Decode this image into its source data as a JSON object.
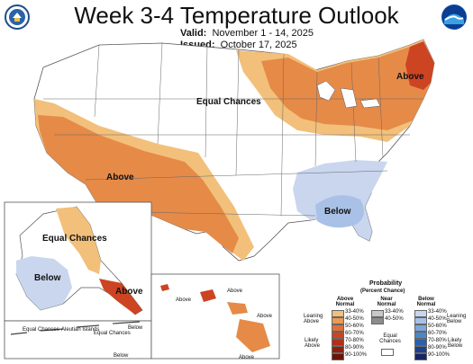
{
  "header": {
    "title": "Week 3-4 Temperature Outlook",
    "valid_label": "Valid:",
    "valid_value": "November 1 - 14, 2025",
    "issued_label": "Issued:",
    "issued_value": "October 17, 2025"
  },
  "logos": {
    "left": "doc-seal-icon",
    "right": "noaa-logo-icon"
  },
  "map_labels": {
    "equal_chances_conus": "Equal Chances",
    "above_northeast": "Above",
    "above_southwest": "Above",
    "below_southeast": "Below",
    "equal_chances_alaska": "Equal Chances",
    "below_alaska": "Below",
    "above_alaska": "Above",
    "equal_chances_aleutian_a": "Equal Chances",
    "aleutian_islands": "Aleutian Islands",
    "equal_chances_aleutian_b": "Equal Chances",
    "below_aleutian_a": "Below",
    "below_aleutian_b": "Below",
    "above_hawaii_1": "Above",
    "above_hawaii_2": "Above",
    "above_hawaii_3": "Above",
    "above_hawaii_4": "Above"
  },
  "legend": {
    "title": "Probability",
    "subtitle": "(Percent Chance)",
    "col_above": "Above Normal",
    "col_near": "Near Normal",
    "col_below": "Below Normal",
    "leaning_above": "Leaning Above",
    "likely_above": "Likely Above",
    "leaning_below": "Leaning Below",
    "likely_below": "Likely Below",
    "equal_chances": "Equal Chances",
    "above_ranges": [
      "33-40%",
      "40-50%",
      "50-60%",
      "60-70%",
      "70-80%",
      "80-90%",
      "90-100%"
    ],
    "near_ranges": [
      "33-40%",
      "40-50%"
    ],
    "below_ranges": [
      "33-40%",
      "40-50%",
      "50-60%",
      "60-70%",
      "70-80%",
      "80-90%",
      "90-100%"
    ],
    "above_colors": [
      "#f2c07a",
      "#eb9a55",
      "#e0703a",
      "#cc4422",
      "#b32f16",
      "#8f1f0c",
      "#6b1405"
    ],
    "near_colors": [
      "#c8c8c8",
      "#8c8c8c"
    ],
    "below_colors": [
      "#c9d6ee",
      "#a9c1e6",
      "#7ea6da",
      "#4d86c8",
      "#2b5fad",
      "#1c3f8c",
      "#12256a"
    ]
  }
}
